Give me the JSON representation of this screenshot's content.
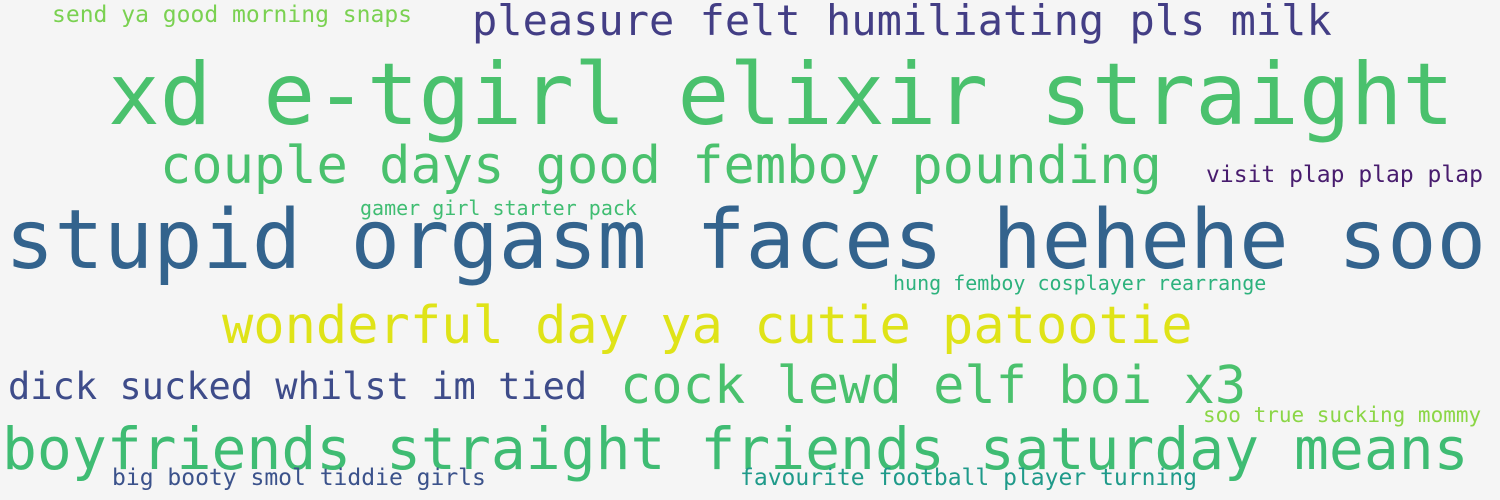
{
  "words": [
    {
      "id": "w1",
      "text": "send ya good morning snaps",
      "color": "#7ad151"
    },
    {
      "id": "w2",
      "text": "pleasure felt humiliating  pls milk",
      "color": "#433e85"
    },
    {
      "id": "w3",
      "text": "xd e-tgirl elixir straight",
      "color": "#4ac16d"
    },
    {
      "id": "w4",
      "text": "couple days good femboy pounding",
      "color": "#4ac16d"
    },
    {
      "id": "w5",
      "text": "visit plap plap plap",
      "color": "#481c6e"
    },
    {
      "id": "w6",
      "text": "gamer girl starter pack",
      "color": "#40bd72"
    },
    {
      "id": "w7",
      "text": "stupid orgasm faces hehehe soo",
      "color": "#33638d"
    },
    {
      "id": "w8",
      "text": "hung femboy cosplayer rearrange",
      "color": "#2db27d"
    },
    {
      "id": "w9",
      "text": "wonderful day ya cutie patootie",
      "color": "#dfe318"
    },
    {
      "id": "w10",
      "text": "dick sucked whilst im tied",
      "color": "#3e4c8a"
    },
    {
      "id": "w11",
      "text": "cock lewd elf boi x3",
      "color": "#4ac16d"
    },
    {
      "id": "w12",
      "text": "soo true sucking mommy",
      "color": "#8bd646"
    },
    {
      "id": "w13",
      "text": "boyfriends straight friends saturday means",
      "color": "#3fbc73"
    },
    {
      "id": "w14",
      "text": "big booty smol tiddie girls",
      "color": "#3b528b"
    },
    {
      "id": "w15",
      "text": "favourite football player turning",
      "color": "#1f9a8a"
    }
  ]
}
